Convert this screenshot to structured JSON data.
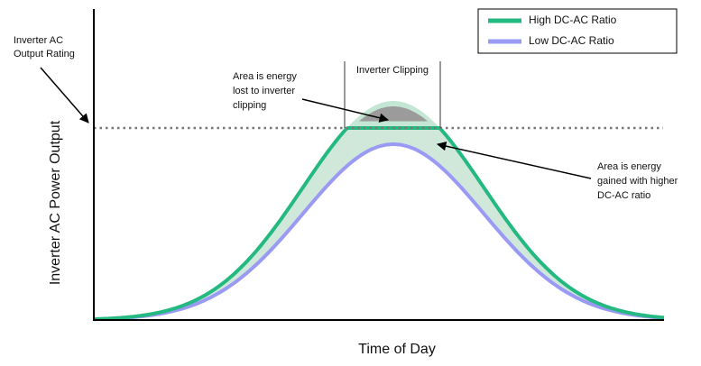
{
  "legend": [
    "High DC-AC Ratio",
    "Low DC-AC Ratio"
  ],
  "y_axis_label": "Inverter AC Power Output",
  "x_axis_label": "Time of Day",
  "annotations": {
    "output_rating": [
      "Inverter AC",
      "Output Rating"
    ],
    "clipping": "Inverter Clipping",
    "lost": [
      "Area is energy",
      "lost to inverter",
      "clipping"
    ],
    "gained": [
      "Area is energy",
      "gained with higher",
      "DC-AC ratio"
    ]
  }
}
